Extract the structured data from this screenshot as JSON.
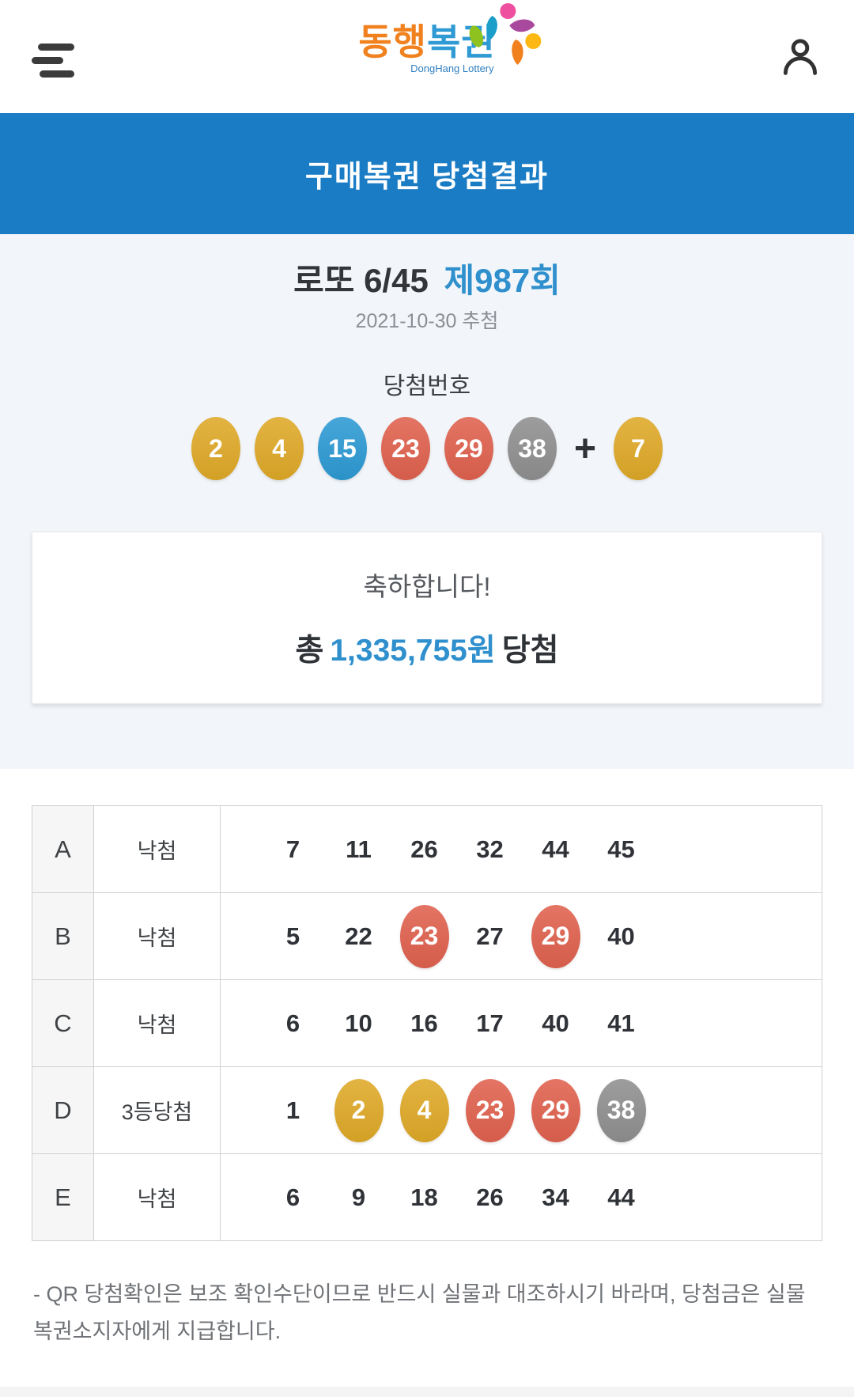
{
  "header": {
    "logo_text_1": "동행",
    "logo_text_2": "복권",
    "logo_subtitle": "DongHang Lottery"
  },
  "banner": {
    "title": "구매복권 당첨결과"
  },
  "draw": {
    "game_name": "로또 6/45",
    "round_label": "제987회",
    "date_label": "2021-10-30 추첨",
    "numbers_heading": "당첨번호",
    "main_numbers": [
      {
        "value": "2",
        "color": "yellow"
      },
      {
        "value": "4",
        "color": "yellow"
      },
      {
        "value": "15",
        "color": "blue"
      },
      {
        "value": "23",
        "color": "red"
      },
      {
        "value": "29",
        "color": "red"
      },
      {
        "value": "38",
        "color": "gray"
      }
    ],
    "bonus_separator": "+",
    "bonus_number": {
      "value": "7",
      "color": "yellow"
    }
  },
  "summary": {
    "congrats": "축하합니다!",
    "amount_prefix": "총",
    "amount": "1,335,755원",
    "amount_suffix": "당첨"
  },
  "tickets": {
    "rows": [
      {
        "label": "A",
        "result": "낙첨",
        "numbers": [
          {
            "value": "7"
          },
          {
            "value": "11"
          },
          {
            "value": "26"
          },
          {
            "value": "32"
          },
          {
            "value": "44"
          },
          {
            "value": "45"
          }
        ]
      },
      {
        "label": "B",
        "result": "낙첨",
        "numbers": [
          {
            "value": "5"
          },
          {
            "value": "22"
          },
          {
            "value": "23",
            "color": "red"
          },
          {
            "value": "27"
          },
          {
            "value": "29",
            "color": "red"
          },
          {
            "value": "40"
          }
        ]
      },
      {
        "label": "C",
        "result": "낙첨",
        "numbers": [
          {
            "value": "6"
          },
          {
            "value": "10"
          },
          {
            "value": "16"
          },
          {
            "value": "17"
          },
          {
            "value": "40"
          },
          {
            "value": "41"
          }
        ]
      },
      {
        "label": "D",
        "result": "3등당첨",
        "numbers": [
          {
            "value": "1"
          },
          {
            "value": "2",
            "color": "yellow"
          },
          {
            "value": "4",
            "color": "yellow"
          },
          {
            "value": "23",
            "color": "red"
          },
          {
            "value": "29",
            "color": "red"
          },
          {
            "value": "38",
            "color": "gray"
          }
        ]
      },
      {
        "label": "E",
        "result": "낙첨",
        "numbers": [
          {
            "value": "6"
          },
          {
            "value": "9"
          },
          {
            "value": "18"
          },
          {
            "value": "26"
          },
          {
            "value": "34"
          },
          {
            "value": "44"
          }
        ]
      }
    ]
  },
  "footer": {
    "note": "- QR 당첨확인은 보조 확인수단이므로 반드시 실물과 대조하시기 바라며, 당첨금은 실물 복권소지자에게 지급합니다."
  },
  "colors": {
    "banner_blue": "#197cc4",
    "accent_blue": "#2f90cd",
    "ball_yellow": "#dfa928",
    "ball_blue": "#2d9ad3",
    "ball_red": "#e0614e",
    "ball_gray": "#8f8f8f",
    "logo_orange": "#f0811e",
    "logo_blue": "#2f9ad3"
  }
}
